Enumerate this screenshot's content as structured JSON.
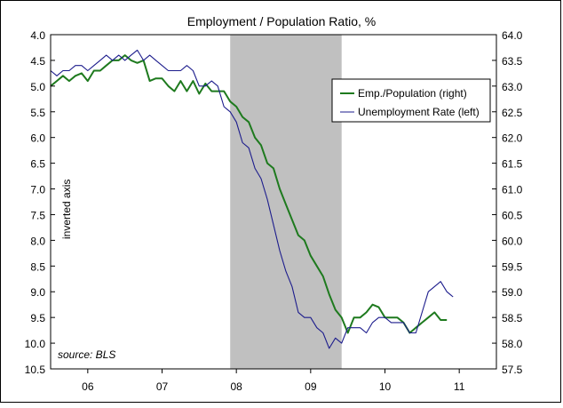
{
  "chart_data": {
    "type": "line",
    "title": "Employment / Population Ratio, %",
    "annotations": {
      "inverted_axis": "inverted axis",
      "source": "source: BLS"
    },
    "x_axis": {
      "range": [
        2005.5,
        2011.5
      ],
      "tick_positions": [
        2006,
        2007,
        2008,
        2009,
        2010,
        2011
      ],
      "tick_labels": [
        "06",
        "07",
        "08",
        "09",
        "10",
        "11"
      ],
      "label_positions": [
        2006.0,
        2007.0,
        2008.0,
        2009.0,
        2010.0,
        2011.0
      ]
    },
    "left_axis": {
      "label": "Unemployment Rate",
      "inverted": true,
      "range": [
        4.0,
        10.5
      ],
      "tick_labels": [
        "4.0",
        "4.5",
        "5.0",
        "5.5",
        "6.0",
        "6.5",
        "7.0",
        "7.5",
        "8.0",
        "8.5",
        "9.0",
        "9.5",
        "10.0",
        "10.5"
      ]
    },
    "right_axis": {
      "label": "Employment/Population",
      "range": [
        57.5,
        64.0
      ],
      "tick_labels": [
        "64.0",
        "63.5",
        "63.0",
        "62.5",
        "62.0",
        "61.5",
        "61.0",
        "60.5",
        "60.0",
        "59.5",
        "59.0",
        "58.5",
        "58.0",
        "57.5"
      ]
    },
    "recession_band": {
      "start": 2007.917,
      "end": 2009.417,
      "color": "#c0c0c0"
    },
    "legend": {
      "position": "top-right"
    },
    "series": [
      {
        "name": "Emp./Population (right)",
        "axis": "right",
        "color": "#1e7a1e",
        "x_start": 2005.5,
        "x_step": 0.08333,
        "values": [
          63.0,
          63.1,
          63.2,
          63.1,
          63.2,
          63.25,
          63.1,
          63.3,
          63.3,
          63.4,
          63.5,
          63.5,
          63.6,
          63.5,
          63.45,
          63.5,
          63.1,
          63.15,
          63.15,
          63.0,
          62.9,
          63.1,
          62.9,
          63.1,
          62.85,
          63.05,
          62.9,
          62.9,
          62.9,
          62.7,
          62.6,
          62.4,
          62.3,
          62.0,
          61.85,
          61.5,
          61.4,
          61.0,
          60.7,
          60.4,
          60.1,
          60.0,
          59.7,
          59.5,
          59.3,
          58.95,
          58.65,
          58.5,
          58.2,
          58.5,
          58.5,
          58.6,
          58.75,
          58.7,
          58.5,
          58.5,
          58.5,
          58.4,
          58.2,
          58.3,
          58.4,
          58.5,
          58.6,
          58.45,
          58.45
        ]
      },
      {
        "name": "Unemployment Rate (left)",
        "axis": "left",
        "color": "#1c1c8c",
        "x_start": 2005.5,
        "x_step": 0.08333,
        "values": [
          4.7,
          4.8,
          4.7,
          4.7,
          4.6,
          4.6,
          4.7,
          4.6,
          4.5,
          4.4,
          4.5,
          4.4,
          4.5,
          4.4,
          4.3,
          4.5,
          4.4,
          4.5,
          4.6,
          4.7,
          4.7,
          4.7,
          4.6,
          4.7,
          5.0,
          5.0,
          4.9,
          5.0,
          5.4,
          5.5,
          5.7,
          6.1,
          6.2,
          6.6,
          6.8,
          7.2,
          7.7,
          8.2,
          8.6,
          8.9,
          9.4,
          9.5,
          9.5,
          9.7,
          9.8,
          10.1,
          9.9,
          10.0,
          9.7,
          9.7,
          9.7,
          9.8,
          9.6,
          9.5,
          9.5,
          9.6,
          9.6,
          9.6,
          9.8,
          9.8,
          9.4,
          9.0,
          8.9,
          8.8,
          9.0,
          9.1
        ]
      }
    ]
  }
}
